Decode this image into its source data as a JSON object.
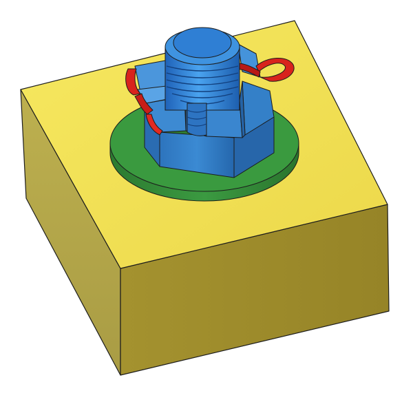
{
  "colors": {
    "background": "#ffffff",
    "block_top": "#f2e254",
    "block_left": "#b2a54a",
    "block_front": "#9e8c2e",
    "washer_top": "#3a9a3f",
    "washer_edge": "#2f7d31",
    "nut_top": "#3f8fd6",
    "nut_side_light": "#3c88cf",
    "nut_side_dark": "#2a6eb5",
    "bolt": "#2e7fd4",
    "pin": "#d8231c",
    "outline": "#1c1c1c"
  },
  "icons": {
    "block": "yellow-block-icon",
    "washer": "green-washer-icon",
    "nut": "castle-nut-icon",
    "bolt": "threaded-bolt-icon",
    "pin": "cotter-pin-icon"
  }
}
